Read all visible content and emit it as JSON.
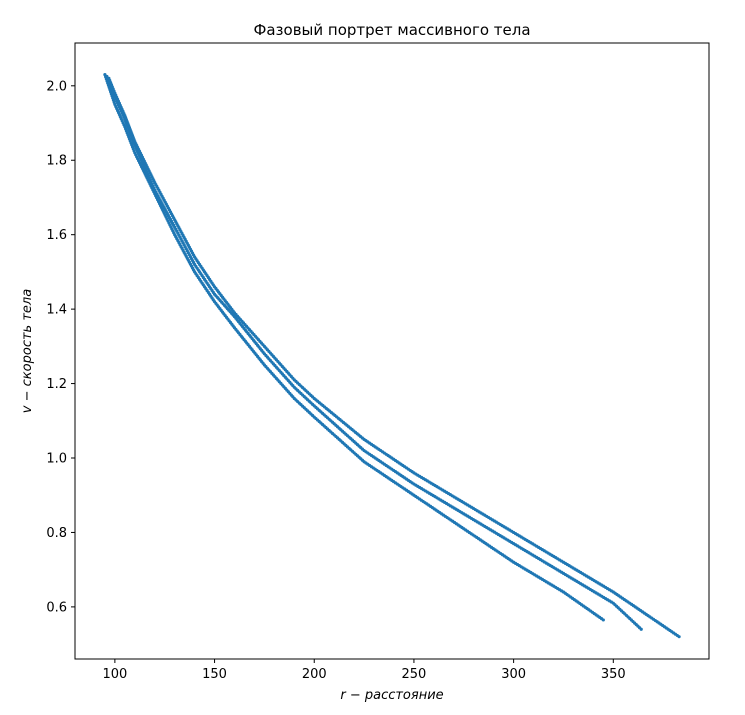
{
  "chart_data": {
    "type": "scatter",
    "title": "Фазовый портрет массивного тела",
    "xlabel": "r − расстояние",
    "ylabel": "v − скорость тела",
    "xlim": [
      80,
      398
    ],
    "ylim": [
      0.46,
      2.115
    ],
    "xticks": [
      100,
      150,
      200,
      250,
      300,
      350
    ],
    "yticks": [
      0.6,
      0.8,
      1.0,
      1.2,
      1.4,
      1.6,
      1.8,
      2.0
    ],
    "ytick_labels": [
      "0.6",
      "0.8",
      "1.0",
      "1.2",
      "1.4",
      "1.6",
      "1.8",
      "2.0"
    ],
    "grid": false,
    "marker_color": "#1f77b4",
    "series": [
      {
        "x": [
          95,
          100,
          105,
          110,
          120,
          130,
          140,
          150,
          160,
          175,
          190,
          200,
          225,
          250,
          275,
          300,
          325,
          345
        ],
        "y": [
          2.03,
          1.95,
          1.89,
          1.82,
          1.71,
          1.6,
          1.5,
          1.42,
          1.35,
          1.25,
          1.16,
          1.11,
          0.99,
          0.9,
          0.81,
          0.72,
          0.64,
          0.565
        ]
      },
      {
        "x": [
          96,
          100,
          105,
          110,
          120,
          130,
          140,
          150,
          160,
          175,
          190,
          200,
          225,
          250,
          275,
          300,
          325,
          350,
          364
        ],
        "y": [
          2.025,
          1.97,
          1.91,
          1.84,
          1.72,
          1.62,
          1.52,
          1.44,
          1.38,
          1.28,
          1.19,
          1.14,
          1.02,
          0.93,
          0.85,
          0.77,
          0.69,
          0.61,
          0.54
        ]
      },
      {
        "x": [
          97,
          100,
          105,
          110,
          120,
          130,
          140,
          150,
          160,
          175,
          190,
          200,
          225,
          250,
          275,
          300,
          325,
          350,
          383
        ],
        "y": [
          2.02,
          1.98,
          1.92,
          1.85,
          1.74,
          1.64,
          1.54,
          1.46,
          1.39,
          1.3,
          1.21,
          1.16,
          1.05,
          0.96,
          0.88,
          0.8,
          0.72,
          0.64,
          0.52
        ]
      }
    ]
  }
}
